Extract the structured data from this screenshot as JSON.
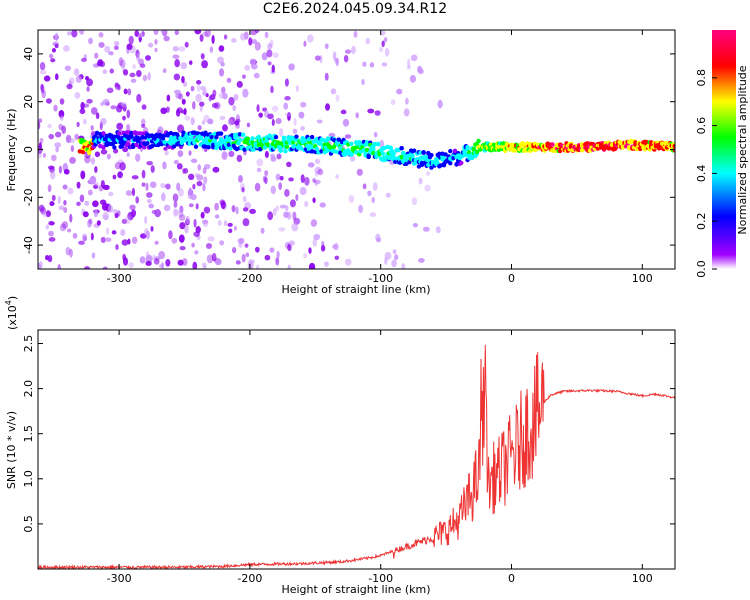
{
  "title": "C2E6.2024.045.09.34.R12",
  "chart_data": [
    {
      "type": "heatmap",
      "xlabel": "Height of straight line (km)",
      "ylabel": "Frequency (Hz)",
      "xlim": [
        -362,
        125
      ],
      "ylim": [
        -50,
        50
      ],
      "xticks": [
        -300,
        -200,
        -100,
        0,
        100
      ],
      "yticks": [
        -40,
        -20,
        0,
        20,
        40
      ],
      "colorbar": {
        "label": "Normalized spectral amplitude",
        "range": [
          0,
          1
        ],
        "ticks": [
          0.0,
          0.2,
          0.4,
          0.6,
          0.8
        ],
        "colors": [
          "#ffffff",
          "#a000ff",
          "#0000ff",
          "#00ffff",
          "#00ff00",
          "#ffff00",
          "#ff0000",
          "#ff0080"
        ]
      },
      "ridge": [
        {
          "x": -320,
          "freq": 4,
          "amp": 0.35
        },
        {
          "x": -280,
          "freq": 4,
          "amp": 0.3
        },
        {
          "x": -240,
          "freq": 4,
          "amp": 0.45
        },
        {
          "x": -200,
          "freq": 3,
          "amp": 0.5
        },
        {
          "x": -150,
          "freq": 2,
          "amp": 0.5
        },
        {
          "x": -110,
          "freq": 0,
          "amp": 0.55
        },
        {
          "x": -80,
          "freq": -3,
          "amp": 0.45
        },
        {
          "x": -60,
          "freq": -5,
          "amp": 0.4
        },
        {
          "x": -40,
          "freq": -3,
          "amp": 0.35
        },
        {
          "x": -25,
          "freq": 1,
          "amp": 0.6
        },
        {
          "x": 0,
          "freq": 1,
          "amp": 0.7
        },
        {
          "x": 30,
          "freq": 1,
          "amp": 0.85
        },
        {
          "x": 60,
          "freq": 1,
          "amp": 0.9
        },
        {
          "x": 90,
          "freq": 2,
          "amp": 0.85
        },
        {
          "x": 125,
          "freq": 1,
          "amp": 0.8
        }
      ]
    },
    {
      "type": "line",
      "xlabel": "Height of straight line (km)",
      "ylabel": "SNR (10 * v/v)",
      "y_multiplier": "(x10",
      "y_multiplier_exp": "4",
      "y_multiplier_close": ")",
      "xlim": [
        -362,
        125
      ],
      "ylim": [
        0,
        2.65
      ],
      "xticks": [
        -300,
        -200,
        -100,
        0,
        100
      ],
      "yticks": [
        0.5,
        1.0,
        1.5,
        2.0,
        2.5
      ],
      "ytick_labels": [
        "0.5",
        "1.0",
        "1.5",
        "2.0",
        "2.5"
      ],
      "color": "#ee3333",
      "x": [
        -362,
        -300,
        -250,
        -220,
        -200,
        -160,
        -130,
        -110,
        -100,
        -90,
        -80,
        -70,
        -60,
        -50,
        -40,
        -35,
        -30,
        -25,
        -22,
        -20,
        -18,
        -15,
        -10,
        -5,
        0,
        5,
        10,
        15,
        20,
        25,
        30,
        40,
        60,
        80,
        100,
        110,
        125
      ],
      "y": [
        0.02,
        0.02,
        0.02,
        0.03,
        0.05,
        0.06,
        0.08,
        0.12,
        0.15,
        0.2,
        0.25,
        0.3,
        0.35,
        0.42,
        0.55,
        0.7,
        0.85,
        1.05,
        1.2,
        1.4,
        0.9,
        1.0,
        1.05,
        1.15,
        1.25,
        1.35,
        1.5,
        1.6,
        1.72,
        1.85,
        1.93,
        1.97,
        1.98,
        1.97,
        1.92,
        1.94,
        1.9
      ]
    }
  ]
}
